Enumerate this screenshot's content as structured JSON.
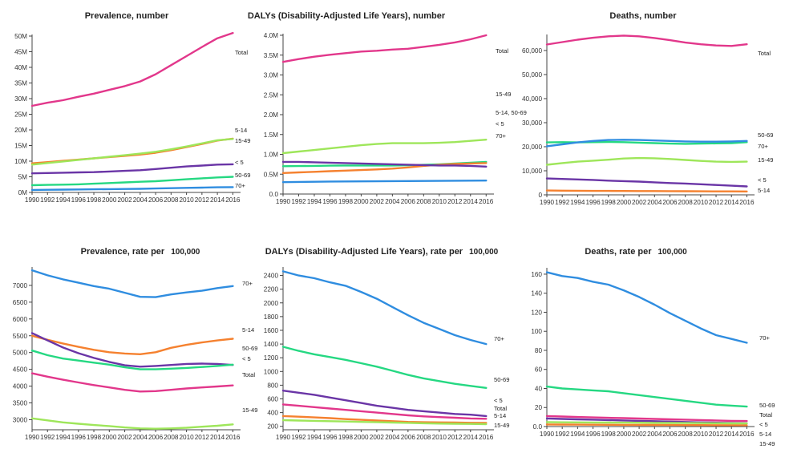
{
  "colors": {
    "Total": "#e2378b",
    "5-14": "#f5812f",
    "15-49": "#9ee65a",
    "< 5": "#6a35a6",
    "50-69": "#25d882",
    "70+": "#2f8de0"
  },
  "chart_data": [
    {
      "type": "line",
      "title": "Prevalence, number",
      "x": [
        1990,
        1992,
        1994,
        1996,
        1998,
        2000,
        2002,
        2004,
        2006,
        2008,
        2010,
        2012,
        2014,
        2016
      ],
      "x_min": 1990,
      "x_max": 2017,
      "x_ticks": [
        "1990",
        "1992",
        "1994",
        "1996",
        "1998",
        "2000",
        "2002",
        "2004",
        "2006",
        "2008",
        "2010",
        "2012",
        "2014",
        "2016"
      ],
      "ylim": [
        0,
        50000000
      ],
      "y_ticks": [
        0,
        5000000,
        10000000,
        15000000,
        20000000,
        25000000,
        30000000,
        35000000,
        40000000,
        45000000,
        50000000
      ],
      "y_tick_labels": [
        "0M",
        "5M",
        "10M",
        "15M",
        "20M",
        "25M",
        "30M",
        "35M",
        "40M",
        "45M",
        "50M"
      ],
      "series": [
        {
          "name": "Total",
          "label": "Total",
          "values": [
            27700000,
            28700000,
            29500000,
            30600000,
            31600000,
            32800000,
            34000000,
            35500000,
            37800000,
            40700000,
            43600000,
            46500000,
            49300000,
            51000000
          ]
        },
        {
          "name": "5-14",
          "label": "5-14",
          "values": [
            9300000,
            9700000,
            10100000,
            10500000,
            10900000,
            11300000,
            11700000,
            12100000,
            12700000,
            13500000,
            14500000,
            15500000,
            16600000,
            17200000
          ]
        },
        {
          "name": "15-49",
          "label": "15-49",
          "values": [
            8900000,
            9400000,
            9900000,
            10400000,
            10900000,
            11400000,
            11900000,
            12400000,
            13000000,
            13800000,
            14700000,
            15700000,
            16700000,
            17100000
          ]
        },
        {
          "name": "< 5",
          "label": "< 5",
          "values": [
            6100000,
            6200000,
            6300000,
            6400000,
            6500000,
            6700000,
            6900000,
            7100000,
            7500000,
            7900000,
            8300000,
            8600000,
            8900000,
            9000000
          ]
        },
        {
          "name": "50-69",
          "label": "50-69",
          "values": [
            2300000,
            2400000,
            2500000,
            2600000,
            2800000,
            3000000,
            3200000,
            3400000,
            3600000,
            3900000,
            4200000,
            4500000,
            4800000,
            5000000
          ]
        },
        {
          "name": "70+",
          "label": "70+",
          "values": [
            800000,
            850000,
            900000,
            950000,
            1000000,
            1050000,
            1100000,
            1150000,
            1250000,
            1350000,
            1450000,
            1550000,
            1650000,
            1700000
          ]
        }
      ]
    },
    {
      "type": "line",
      "title": "DALYs (Disability-Adjusted Life Years), number",
      "x": [
        1990,
        1992,
        1994,
        1996,
        1998,
        2000,
        2002,
        2004,
        2006,
        2008,
        2010,
        2012,
        2014,
        2016
      ],
      "x_min": 1990,
      "x_max": 2017,
      "x_ticks": [
        "1990",
        "1992",
        "1994",
        "1996",
        "1998",
        "2000",
        "2002",
        "2004",
        "2006",
        "2008",
        "2010",
        "2012",
        "2014",
        "2016"
      ],
      "ylim": [
        0,
        4000000
      ],
      "y_ticks": [
        0,
        500000,
        1000000,
        1500000,
        2000000,
        2500000,
        3000000,
        3500000,
        4000000
      ],
      "y_tick_labels": [
        "0.0",
        "0.5M",
        "1.0M",
        "1.5M",
        "2.0M",
        "2.5M",
        "3.0M",
        "3.5M",
        "4.0M"
      ],
      "series": [
        {
          "name": "Total",
          "label": "Total",
          "values": [
            3330000,
            3400000,
            3460000,
            3510000,
            3550000,
            3590000,
            3610000,
            3640000,
            3660000,
            3710000,
            3760000,
            3820000,
            3900000,
            4000000
          ]
        },
        {
          "name": "15-49",
          "label": "15-49",
          "values": [
            1030000,
            1070000,
            1110000,
            1150000,
            1190000,
            1230000,
            1260000,
            1280000,
            1280000,
            1280000,
            1290000,
            1310000,
            1340000,
            1370000
          ]
        },
        {
          "name": "50-69",
          "label": "5-14, 50-69",
          "values": [
            700000,
            705000,
            710000,
            715000,
            720000,
            720000,
            720000,
            720000,
            725000,
            735000,
            750000,
            770000,
            790000,
            810000
          ]
        },
        {
          "name": "5-14",
          "label": "",
          "values": [
            530000,
            545000,
            560000,
            575000,
            590000,
            605000,
            620000,
            640000,
            670000,
            710000,
            740000,
            760000,
            770000,
            780000
          ]
        },
        {
          "name": "< 5",
          "label": "< 5",
          "values": [
            810000,
            810000,
            800000,
            790000,
            780000,
            770000,
            760000,
            750000,
            740000,
            730000,
            720000,
            720000,
            710000,
            690000
          ]
        },
        {
          "name": "70+",
          "label": "70+",
          "values": [
            300000,
            305000,
            310000,
            315000,
            318000,
            320000,
            322000,
            325000,
            328000,
            330000,
            332000,
            335000,
            338000,
            340000
          ]
        }
      ]
    },
    {
      "type": "line",
      "title": "Deaths, number",
      "x": [
        1990,
        1992,
        1994,
        1996,
        1998,
        2000,
        2002,
        2004,
        2006,
        2008,
        2010,
        2012,
        2014,
        2016
      ],
      "x_min": 1990,
      "x_max": 2017,
      "x_ticks": [
        "1990",
        "1992",
        "1994",
        "1996",
        "1998",
        "2000",
        "2002",
        "2004",
        "2006",
        "2008",
        "2010",
        "2012",
        "2014",
        "2016"
      ],
      "ylim": [
        0,
        66000
      ],
      "y_ticks": [
        0,
        10000,
        20000,
        30000,
        40000,
        50000,
        60000
      ],
      "y_tick_labels": [
        "0",
        "10,000",
        "20,000",
        "30,000",
        "40,000",
        "50,000",
        "60,000"
      ],
      "series": [
        {
          "name": "Total",
          "label": "Total",
          "values": [
            62500,
            63500,
            64500,
            65300,
            65900,
            66200,
            65900,
            65200,
            64300,
            63300,
            62600,
            62100,
            61900,
            62600
          ]
        },
        {
          "name": "50-69",
          "label": "50-69",
          "values": [
            21800,
            21900,
            21800,
            21900,
            22000,
            21900,
            21700,
            21500,
            21300,
            21200,
            21300,
            21400,
            21500,
            21900
          ]
        },
        {
          "name": "70+",
          "label": "70+",
          "values": [
            20200,
            21000,
            21800,
            22400,
            22800,
            22900,
            22800,
            22600,
            22400,
            22200,
            22100,
            22100,
            22200,
            22400
          ]
        },
        {
          "name": "15-49",
          "label": "15-49",
          "values": [
            12500,
            13200,
            13800,
            14200,
            14600,
            15100,
            15300,
            15200,
            14900,
            14500,
            14100,
            13800,
            13700,
            13800
          ]
        },
        {
          "name": "< 5",
          "label": "< 5",
          "values": [
            6800,
            6600,
            6400,
            6200,
            5900,
            5700,
            5500,
            5200,
            4900,
            4700,
            4400,
            4100,
            3800,
            3500
          ]
        },
        {
          "name": "5-14",
          "label": "5-14",
          "values": [
            1800,
            1750,
            1700,
            1650,
            1620,
            1600,
            1580,
            1550,
            1520,
            1500,
            1470,
            1450,
            1430,
            1400
          ]
        }
      ]
    },
    {
      "type": "line",
      "title": "Prevalence, rate per",
      "title_rate": "100,000",
      "x": [
        1990,
        1992,
        1994,
        1996,
        1998,
        2000,
        2002,
        2004,
        2006,
        2008,
        2010,
        2012,
        2014,
        2016
      ],
      "x_min": 1990,
      "x_max": 2017,
      "x_ticks": [
        "1990",
        "1992",
        "1994",
        "1996",
        "1998",
        "2000",
        "2002",
        "2004",
        "2006",
        "2008",
        "2010",
        "2012",
        "2014",
        "2016"
      ],
      "ylim": [
        2700,
        7500
      ],
      "y_ticks": [
        3000,
        3500,
        4000,
        4500,
        5000,
        5500,
        6000,
        6500,
        7000
      ],
      "y_tick_labels": [
        "3000",
        "3500",
        "4000",
        "4500",
        "5000",
        "5500",
        "6000",
        "6500",
        "7000"
      ],
      "series": [
        {
          "name": "70+",
          "label": "70+",
          "values": [
            7450,
            7300,
            7180,
            7080,
            6980,
            6900,
            6780,
            6660,
            6650,
            6730,
            6790,
            6840,
            6920,
            6980
          ]
        },
        {
          "name": "5-14",
          "label": "5-14",
          "values": [
            5500,
            5380,
            5270,
            5170,
            5080,
            5010,
            4970,
            4950,
            5010,
            5140,
            5230,
            5300,
            5360,
            5410
          ]
        },
        {
          "name": "< 5",
          "label": "50-69",
          "values": [
            5580,
            5360,
            5150,
            4980,
            4840,
            4720,
            4620,
            4580,
            4600,
            4630,
            4660,
            4670,
            4660,
            4630
          ]
        },
        {
          "name": "50-69",
          "label": "< 5",
          "values": [
            5060,
            4920,
            4820,
            4760,
            4700,
            4640,
            4560,
            4500,
            4500,
            4520,
            4540,
            4570,
            4600,
            4640
          ]
        },
        {
          "name": "Total",
          "label": "Total",
          "values": [
            4380,
            4280,
            4190,
            4110,
            4030,
            3960,
            3890,
            3840,
            3850,
            3890,
            3930,
            3960,
            3990,
            4020
          ]
        },
        {
          "name": "15-49",
          "label": "15-49",
          "values": [
            3040,
            2980,
            2920,
            2880,
            2840,
            2810,
            2770,
            2740,
            2730,
            2740,
            2760,
            2790,
            2820,
            2860
          ]
        }
      ]
    },
    {
      "type": "line",
      "title": "DALYs (Disability-Adjusted Life Years), rate per",
      "title_rate": "100,000",
      "x": [
        1990,
        1992,
        1994,
        1996,
        1998,
        2000,
        2002,
        2004,
        2006,
        2008,
        2010,
        2012,
        2014,
        2016
      ],
      "x_min": 1990,
      "x_max": 2017,
      "x_ticks": [
        "1990",
        "1992",
        "1994",
        "1996",
        "1998",
        "2000",
        "2002",
        "2004",
        "2006",
        "2008",
        "2010",
        "2012",
        "2014",
        "2016"
      ],
      "ylim": [
        150,
        2500
      ],
      "y_ticks": [
        200,
        400,
        600,
        800,
        1000,
        1200,
        1400,
        1600,
        1800,
        2000,
        2200,
        2400
      ],
      "y_tick_labels": [
        "200",
        "400",
        "600",
        "800",
        "1000",
        "1200",
        "1400",
        "1600",
        "1800",
        "2000",
        "2200",
        "2400"
      ],
      "series": [
        {
          "name": "70+",
          "label": "70+",
          "values": [
            2460,
            2400,
            2360,
            2300,
            2250,
            2160,
            2060,
            1940,
            1820,
            1710,
            1620,
            1530,
            1460,
            1400
          ]
        },
        {
          "name": "50-69",
          "label": "50-69",
          "values": [
            1360,
            1300,
            1250,
            1210,
            1170,
            1120,
            1070,
            1010,
            950,
            900,
            860,
            820,
            790,
            760
          ]
        },
        {
          "name": "< 5",
          "label": "< 5",
          "values": [
            720,
            690,
            660,
            620,
            580,
            540,
            500,
            470,
            440,
            420,
            400,
            380,
            370,
            350
          ]
        },
        {
          "name": "Total",
          "label": "Total",
          "values": [
            520,
            500,
            480,
            460,
            440,
            420,
            400,
            380,
            360,
            345,
            335,
            325,
            315,
            310
          ]
        },
        {
          "name": "5-14",
          "label": "5-14",
          "values": [
            350,
            340,
            330,
            320,
            305,
            295,
            285,
            275,
            265,
            260,
            258,
            255,
            252,
            250
          ]
        },
        {
          "name": "15-49",
          "label": "15-49",
          "values": [
            290,
            285,
            280,
            275,
            270,
            265,
            260,
            255,
            250,
            245,
            240,
            238,
            235,
            232
          ]
        }
      ]
    },
    {
      "type": "line",
      "title": "Deaths, rate per",
      "title_rate": "100,000",
      "x": [
        1990,
        1992,
        1994,
        1996,
        1998,
        2000,
        2002,
        2004,
        2006,
        2008,
        2010,
        2012,
        2014,
        2016
      ],
      "x_min": 1990,
      "x_max": 2017,
      "x_ticks": [
        "1990",
        "1992",
        "1994",
        "1996",
        "1998",
        "2000",
        "2002",
        "2004",
        "2006",
        "2008",
        "2010",
        "2012",
        "2014",
        "2016"
      ],
      "ylim": [
        0,
        165
      ],
      "y_ticks": [
        0,
        20,
        40,
        60,
        80,
        100,
        120,
        140,
        160
      ],
      "y_tick_labels": [
        "0.0",
        "20",
        "40",
        "60",
        "80",
        "100",
        "120",
        "140",
        "160"
      ],
      "series": [
        {
          "name": "70+",
          "label": "70+",
          "values": [
            162,
            158,
            156,
            152,
            149,
            143,
            136,
            128,
            119,
            111,
            103,
            96,
            92,
            88
          ]
        },
        {
          "name": "50-69",
          "label": "50-69",
          "values": [
            42,
            40,
            39,
            38,
            37,
            35,
            33,
            31,
            29,
            27,
            25,
            23,
            22,
            21
          ]
        },
        {
          "name": "Total",
          "label": "Total",
          "values": [
            11,
            10.5,
            10,
            9.6,
            9.2,
            8.8,
            8.4,
            8,
            7.6,
            7.2,
            6.8,
            6.4,
            6,
            5.8
          ]
        },
        {
          "name": "< 5",
          "label": "< 5",
          "values": [
            8.5,
            8,
            7.6,
            7.2,
            6.8,
            6.4,
            6,
            5.6,
            5.2,
            4.8,
            4.4,
            4,
            3.7,
            3.4
          ]
        },
        {
          "name": "5-14",
          "label": "5-14",
          "values": [
            2.2,
            2.1,
            2,
            1.9,
            1.85,
            1.8,
            1.7,
            1.65,
            1.6,
            1.55,
            1.5,
            1.45,
            1.4,
            1.35
          ]
        },
        {
          "name": "15-49",
          "label": "15-49",
          "values": [
            4.6,
            4.5,
            4.4,
            4.3,
            4.2,
            4.1,
            4,
            3.9,
            3.8,
            3.7,
            3.6,
            3.5,
            3.4,
            3.3
          ]
        }
      ]
    }
  ]
}
